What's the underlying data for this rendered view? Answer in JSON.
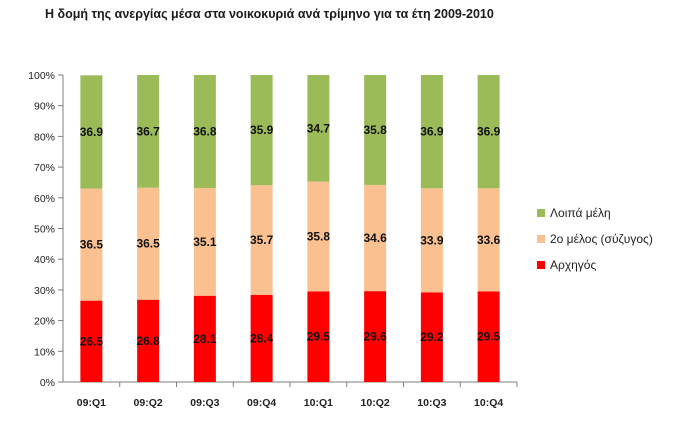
{
  "chart_data": {
    "type": "bar",
    "stacked": true,
    "title": "Η δομή της ανεργίας μέσα στα νοικοκυριά ανά τρίμηνο για τα έτη 2009-2010",
    "categories": [
      "09:Q1",
      "09:Q2",
      "09:Q3",
      "09:Q4",
      "10:Q1",
      "10:Q2",
      "10:Q3",
      "10:Q4"
    ],
    "ylim": [
      0,
      100
    ],
    "yticks": [
      "0%",
      "10%",
      "20%",
      "30%",
      "40%",
      "50%",
      "60%",
      "70%",
      "80%",
      "90%",
      "100%"
    ],
    "grid": false,
    "legend_position": "right",
    "series": [
      {
        "name": "Αρχηγός",
        "color": "#ff0000",
        "values": [
          26.5,
          26.8,
          28.1,
          28.4,
          29.5,
          29.6,
          29.2,
          29.5
        ]
      },
      {
        "name": "2ο μέλος (σύζυγος)",
        "color": "#fac090",
        "values": [
          36.5,
          36.5,
          35.1,
          35.7,
          35.8,
          34.6,
          33.9,
          33.6
        ]
      },
      {
        "name": "Λοιπά μέλη",
        "color": "#9bbb59",
        "values": [
          36.9,
          36.7,
          36.8,
          35.9,
          34.7,
          35.8,
          36.9,
          36.9
        ]
      }
    ],
    "legend_order": [
      "Λοιπά μέλη",
      "2ο μέλος (σύζυγος)",
      "Αρχηγός"
    ]
  }
}
